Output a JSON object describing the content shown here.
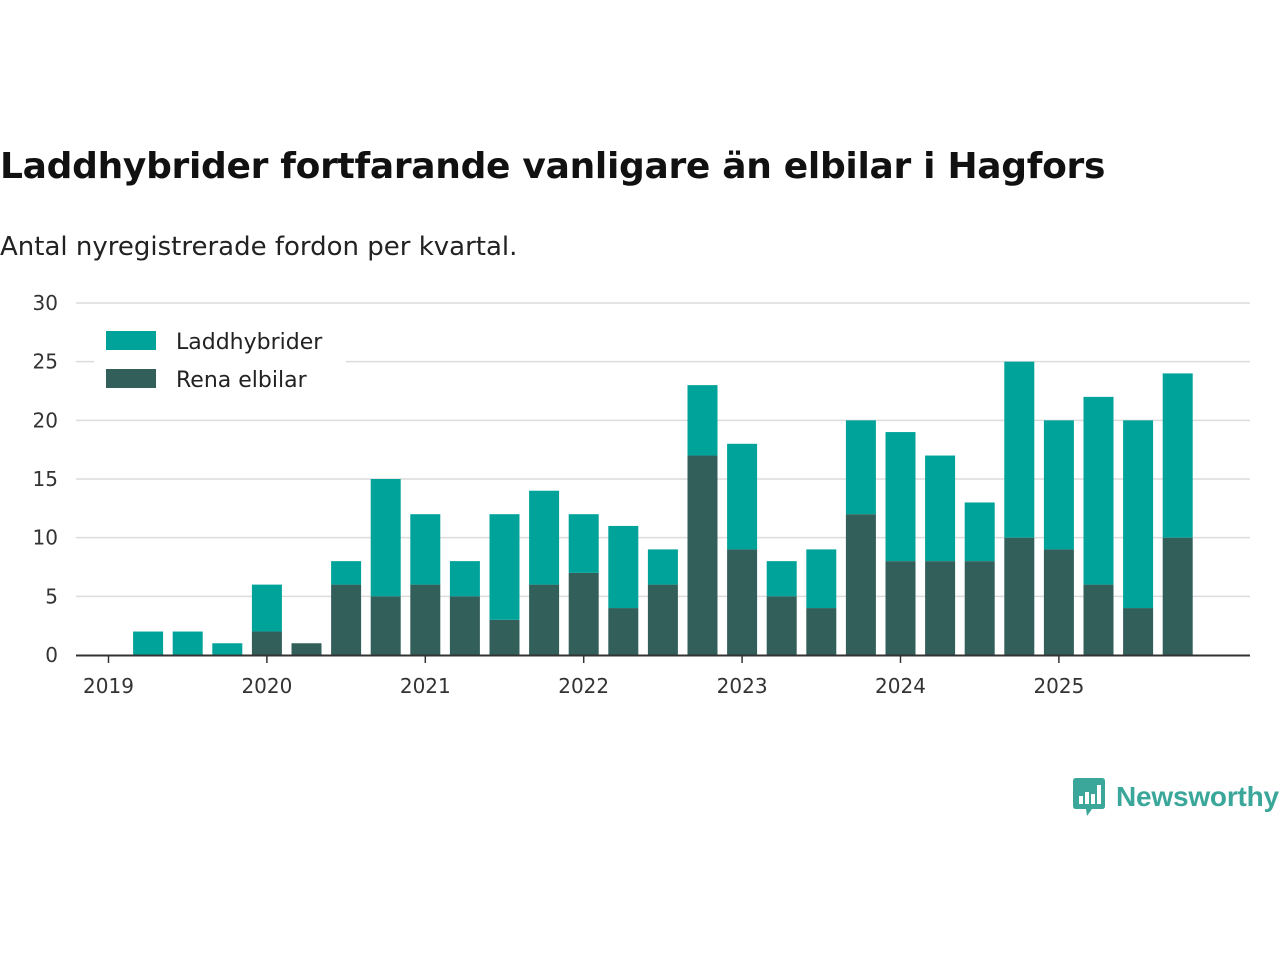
{
  "header": {
    "title": "Laddhybrider fortfarande vanligare än elbilar i Hagfors",
    "subtitle": "Antal nyregistrerade fordon per kvartal."
  },
  "brand": {
    "name": "Newsworthy",
    "color": "#3aa79a"
  },
  "chart_data": {
    "type": "bar",
    "stacked": true,
    "title": "Laddhybrider fortfarande vanligare än elbilar i Hagfors",
    "subtitle": "Antal nyregistrerade fordon per kvartal.",
    "xlabel": "",
    "ylabel": "",
    "ylim": [
      0,
      30
    ],
    "yticks": [
      0,
      5,
      10,
      15,
      20,
      25,
      30
    ],
    "grid": true,
    "legend_position": "top-left",
    "year_ticks": [
      "2019",
      "2020",
      "2021",
      "2022",
      "2023",
      "2024",
      "2025"
    ],
    "categories": [
      "2019 Q1",
      "2019 Q2",
      "2019 Q3",
      "2019 Q4",
      "2020 Q1",
      "2020 Q2",
      "2020 Q3",
      "2020 Q4",
      "2021 Q1",
      "2021 Q2",
      "2021 Q3",
      "2021 Q4",
      "2022 Q1",
      "2022 Q2",
      "2022 Q3",
      "2022 Q4",
      "2023 Q1",
      "2023 Q2",
      "2023 Q3",
      "2023 Q4",
      "2024 Q1",
      "2024 Q2",
      "2024 Q3",
      "2024 Q4",
      "2025 Q1",
      "2025 Q2",
      "2025 Q3",
      "2025 Q4"
    ],
    "series": [
      {
        "name": "Rena elbilar",
        "color": "#335f5b",
        "values": [
          0,
          0,
          0,
          0,
          2,
          1,
          6,
          5,
          6,
          5,
          3,
          6,
          7,
          4,
          6,
          17,
          9,
          5,
          4,
          12,
          8,
          8,
          8,
          10,
          9,
          6,
          4,
          10
        ]
      },
      {
        "name": "Laddhybrider",
        "color": "#00a39a",
        "values": [
          0,
          2,
          2,
          1,
          4,
          0,
          2,
          10,
          6,
          3,
          9,
          8,
          5,
          7,
          3,
          6,
          9,
          3,
          5,
          8,
          11,
          9,
          5,
          15,
          11,
          16,
          16,
          14
        ]
      }
    ],
    "legend": [
      "Laddhybrider",
      "Rena elbilar"
    ]
  }
}
